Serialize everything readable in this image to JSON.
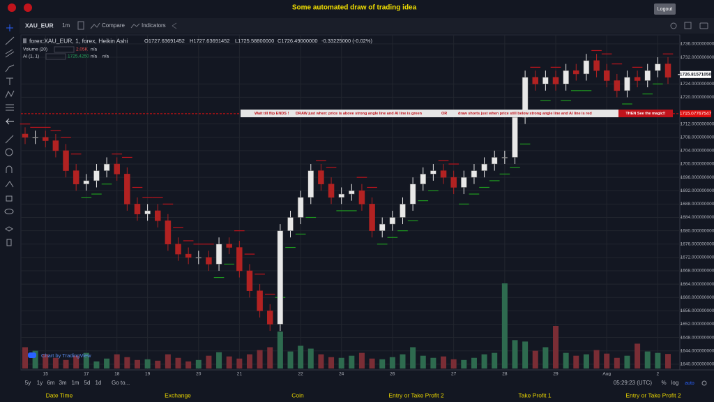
{
  "header": {
    "title": "Some automated draw of trading idea",
    "logout": "Logout"
  },
  "toolbar": {
    "symbol": "XAU_EUR",
    "interval": "1m",
    "compare": "Compare",
    "indicators": "Indicators"
  },
  "chart_data": {
    "type": "candlestick",
    "symbol_label": "forex:XAU_EUR, 1, forex, Heikin Ashi",
    "ohlc_labels": [
      "O1727.63691452",
      "H1727.63691452",
      "L1725.58800000",
      "C1726.49000000"
    ],
    "change": "-0.33225000 (-0.02%)",
    "categories": [
      null,
      null,
      "15",
      null,
      null,
      null,
      "17",
      null,
      null,
      "18",
      null,
      null,
      "19",
      null,
      null,
      null,
      null,
      "20",
      null,
      null,
      null,
      "21",
      null,
      null,
      null,
      null,
      null,
      "22",
      null,
      null,
      null,
      "24",
      null,
      null,
      null,
      null,
      "26",
      null,
      null,
      null,
      null,
      null,
      "27",
      null,
      null,
      null,
      null,
      "28",
      null,
      null,
      null,
      null,
      "29",
      null,
      null,
      null,
      null,
      "Aug",
      null,
      null,
      null,
      null,
      "2",
      null
    ],
    "open": [
      1709,
      1708,
      1708,
      1707,
      1704,
      1698,
      1694,
      1695,
      1698,
      1700,
      1697,
      1688,
      1685,
      1686,
      1683,
      1676,
      1673,
      1672,
      1672,
      1670,
      1676,
      1675,
      1668,
      1662,
      1656,
      1652,
      1680,
      1684,
      1690,
      1698,
      1694,
      1690,
      1691,
      1692,
      1688,
      1680,
      1682,
      1684,
      1688,
      1694,
      1697,
      1698,
      1696,
      1693,
      1696,
      1698,
      1700,
      1702,
      1702,
      1714,
      1726,
      1724,
      1726,
      1724,
      1728,
      1727,
      1731,
      1728,
      1725,
      1722,
      1726,
      1725,
      1728,
      1730
    ],
    "high": [
      1711,
      1710,
      1710,
      1709,
      1706,
      1700,
      1697,
      1700,
      1702,
      1702,
      1699,
      1690,
      1688,
      1688,
      1685,
      1678,
      1675,
      1674,
      1674,
      1678,
      1678,
      1677,
      1670,
      1664,
      1658,
      1682,
      1686,
      1692,
      1700,
      1700,
      1696,
      1693,
      1694,
      1694,
      1690,
      1684,
      1686,
      1690,
      1696,
      1699,
      1700,
      1700,
      1698,
      1698,
      1700,
      1702,
      1704,
      1704,
      1716,
      1728,
      1728,
      1728,
      1728,
      1730,
      1730,
      1733,
      1733,
      1730,
      1727,
      1728,
      1728,
      1730,
      1732,
      1732
    ],
    "low": [
      1706,
      1706,
      1705,
      1702,
      1696,
      1692,
      1692,
      1693,
      1696,
      1695,
      1686,
      1683,
      1683,
      1681,
      1674,
      1671,
      1670,
      1670,
      1668,
      1668,
      1673,
      1666,
      1660,
      1654,
      1650,
      1650,
      1678,
      1682,
      1688,
      1692,
      1688,
      1688,
      1689,
      1686,
      1678,
      1678,
      1680,
      1682,
      1686,
      1692,
      1695,
      1694,
      1691,
      1691,
      1694,
      1696,
      1698,
      1700,
      1700,
      1712,
      1722,
      1722,
      1722,
      1722,
      1725,
      1725,
      1726,
      1723,
      1720,
      1720,
      1723,
      1723,
      1726,
      1724
    ],
    "close": [
      1708,
      1708,
      1707,
      1704,
      1698,
      1694,
      1695,
      1698,
      1700,
      1697,
      1688,
      1685,
      1686,
      1683,
      1676,
      1673,
      1672,
      1672,
      1670,
      1676,
      1675,
      1668,
      1662,
      1656,
      1652,
      1680,
      1684,
      1690,
      1698,
      1694,
      1690,
      1691,
      1692,
      1688,
      1680,
      1682,
      1684,
      1688,
      1694,
      1697,
      1698,
      1696,
      1693,
      1696,
      1698,
      1700,
      1702,
      1702,
      1714,
      1726,
      1724,
      1726,
      1724,
      1728,
      1727,
      1731,
      1728,
      1725,
      1722,
      1726,
      1725,
      1728,
      1730,
      1726
    ],
    "up_color": "#e8e8e8",
    "down_color": "#b22222",
    "volume": {
      "name": "Volume (20)",
      "value_label": "2.05K",
      "na": "n/a",
      "up_color": "#2e6b4f",
      "down_color": "#7a2d35",
      "values": [
        3,
        2.5,
        2,
        1.5,
        1.2,
        1.8,
        2.2,
        1,
        1.4,
        2,
        1.6,
        1.2,
        1.3,
        1.1,
        2,
        1.5,
        1,
        1.2,
        1.8,
        2.3,
        1.7,
        1.4,
        2,
        2.6,
        3,
        5.2,
        2.4,
        3.2,
        2.8,
        2,
        1.6,
        1.5,
        1.8,
        2.2,
        1.4,
        1.3,
        1.6,
        2,
        3,
        1.8,
        1.5,
        1.7,
        1.3,
        1.2,
        1.5,
        2,
        2.2,
        12,
        4,
        3.8,
        2.5,
        3,
        6,
        2.2,
        1.8,
        2,
        2.6,
        2.1,
        1.5,
        1.8,
        3.5,
        2.4,
        2.2,
        2.05
      ]
    },
    "ai": {
      "name": "AI (1, 1)",
      "value_label": "1725.4250",
      "na": [
        "n/a",
        "n/a"
      ],
      "up_color": "#1f9e1f",
      "down_color": "#c0141c",
      "values": [
        1712,
        1711,
        1711,
        1710,
        1708,
        1703,
        1690,
        1691,
        1694,
        1703,
        1702,
        1693,
        1690,
        1690,
        1688,
        1681,
        1677,
        1676,
        1676,
        1666,
        1670,
        1680,
        1673,
        1667,
        1661,
        1660,
        1675,
        1679,
        1684,
        1701,
        1699,
        1686,
        1686,
        1696,
        1693,
        1676,
        1678,
        1680,
        1683,
        1689,
        1692,
        1701,
        1700,
        1688,
        1691,
        1693,
        1695,
        1697,
        1699,
        1706,
        1729,
        1719,
        1729,
        1719,
        1722,
        1722,
        1734,
        1733,
        1730,
        1718,
        1729,
        1721,
        1724,
        1733
      ]
    },
    "ylim": [
      1638.3,
      1738.7
    ],
    "yticks": [
      {
        "value": 1640,
        "label": "1640.000000000"
      },
      {
        "value": 1644,
        "label": "1644.000000000"
      },
      {
        "value": 1648,
        "label": "1648.000000000"
      },
      {
        "value": 1652,
        "label": "1652.000000000"
      },
      {
        "value": 1656,
        "label": "1656.000000000"
      },
      {
        "value": 1660,
        "label": "1660.000000000"
      },
      {
        "value": 1664,
        "label": "1664.000000000"
      },
      {
        "value": 1668,
        "label": "1668.000000000"
      },
      {
        "value": 1672,
        "label": "1672.000000000"
      },
      {
        "value": 1676,
        "label": "1676.000000000"
      },
      {
        "value": 1680,
        "label": "1680.000000000"
      },
      {
        "value": 1684,
        "label": "1684.000000000"
      },
      {
        "value": 1688,
        "label": "1688.000000000"
      },
      {
        "value": 1692,
        "label": "1692.000000000"
      },
      {
        "value": 1696,
        "label": "1696.000000000"
      },
      {
        "value": 1700,
        "label": "1700.000000000"
      },
      {
        "value": 1704,
        "label": "1704.000000000"
      },
      {
        "value": 1708,
        "label": "1708.000000000"
      },
      {
        "value": 1712,
        "label": "1712.000000000"
      },
      {
        "value": 1720,
        "label": "1720.000000000"
      },
      {
        "value": 1724,
        "label": "1724.000000000"
      },
      {
        "value": 1732,
        "label": "1732.000000000"
      },
      {
        "value": 1736,
        "label": "1736.000000000"
      }
    ],
    "grid": true,
    "hline": {
      "value": 1715.07767547,
      "label": "1715.07767547",
      "color": "#e01010"
    },
    "last_price": {
      "value": 1726.8157105,
      "label": "1726.81571050"
    },
    "banner": [
      "Wait till flip ENDS !",
      "DRAW just when:  price is above strong angle line and AI line is green",
      "OR",
      "draw shorts just when price still below strong angle line and AI line is red",
      "THEN See the magic!!"
    ],
    "watermark": "Chart by TradingView"
  },
  "range_bar": {
    "buttons": [
      "5y",
      "1y",
      "6m",
      "3m",
      "1m",
      "5d",
      "1d"
    ],
    "goto": "Go to...",
    "time": "05:29:23 (UTC)",
    "options": [
      "%",
      "log",
      "auto"
    ]
  },
  "footer": [
    "Date Time",
    "Exchange",
    "Coin",
    "Entry or Take Profit 2",
    "Take Profit 1",
    "Entry or Take Profit 2"
  ]
}
